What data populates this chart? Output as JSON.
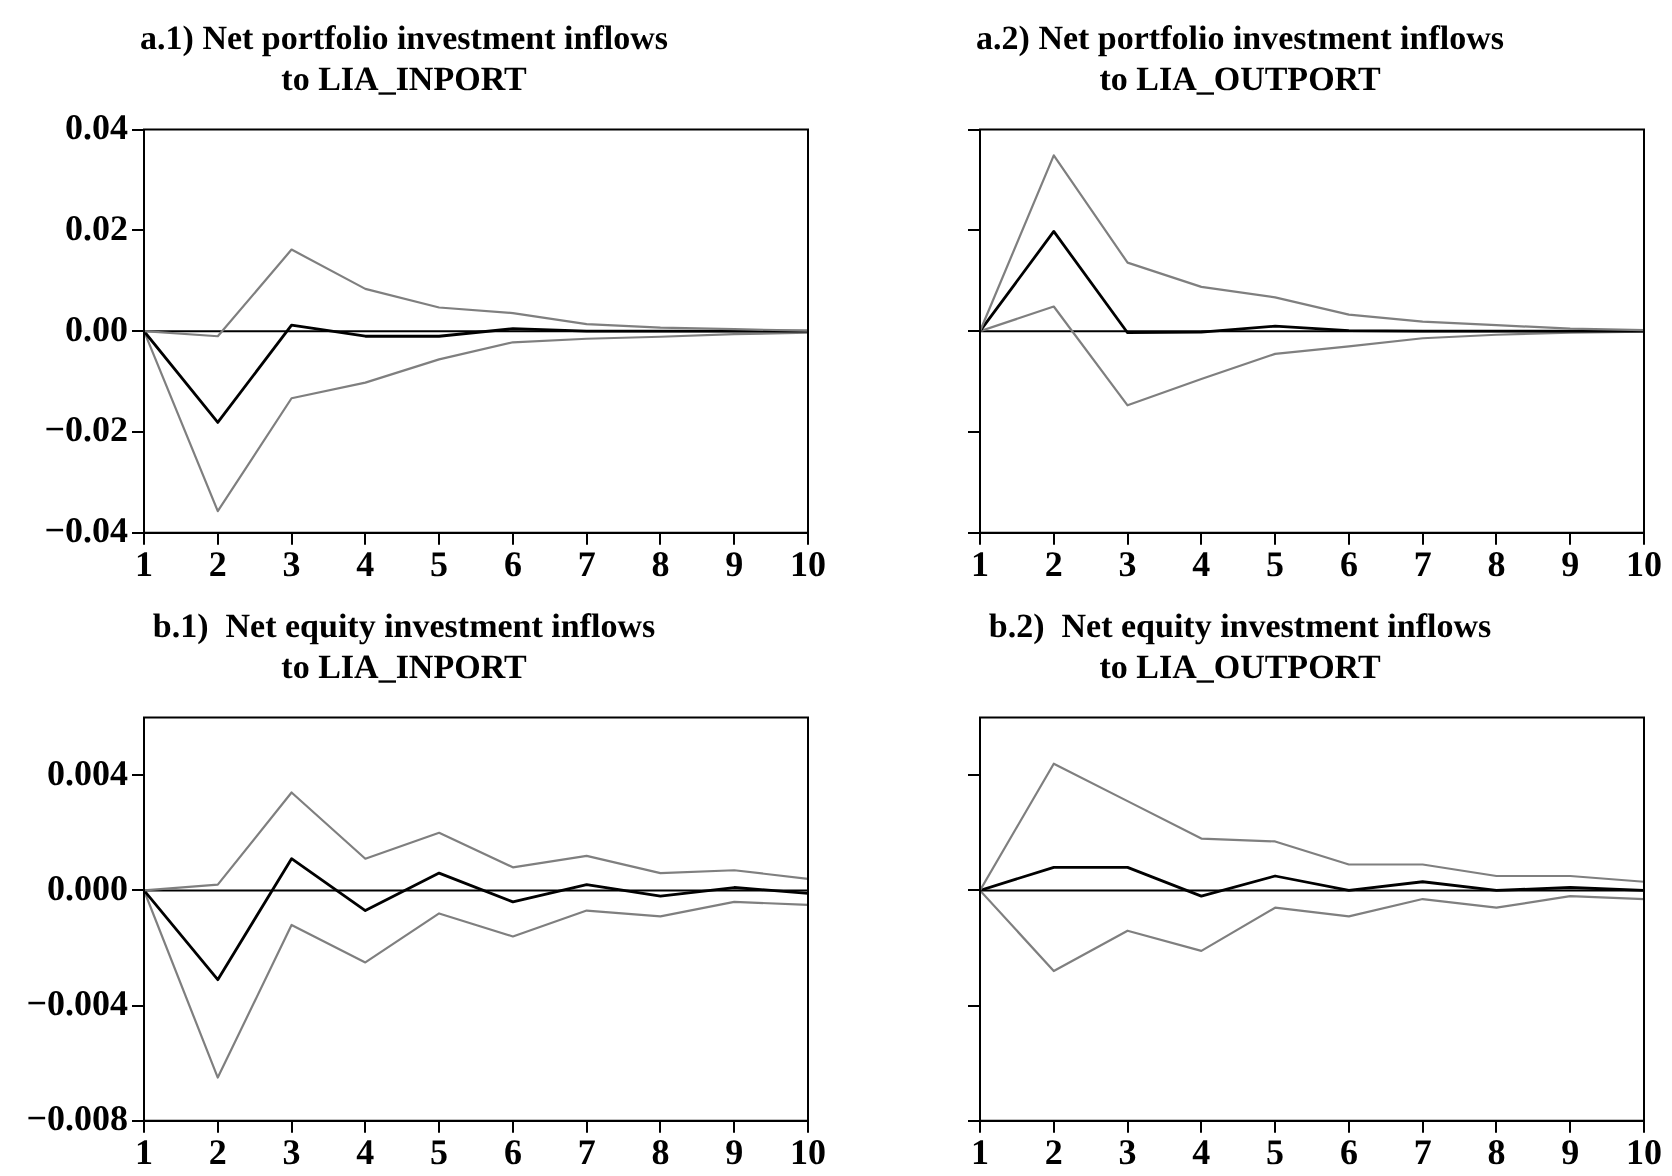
{
  "chart_data": [
    {
      "type": "line",
      "title": "a.1) Net portfolio investment inflows\nto LIA_INPORT",
      "x": [
        1,
        2,
        3,
        4,
        5,
        6,
        7,
        8,
        9,
        10
      ],
      "xlim": [
        1,
        10
      ],
      "xticks": [
        1,
        2,
        3,
        4,
        5,
        6,
        7,
        8,
        9,
        10
      ],
      "ylim": [
        -0.04,
        0.04
      ],
      "yticks": [
        {
          "value": -0.04,
          "label": "−0.04"
        },
        {
          "value": -0.02,
          "label": "−0.02"
        },
        {
          "value": 0,
          "label": "0.00"
        },
        0.02,
        0.04
      ],
      "grid": false,
      "legend": false,
      "marker": "none",
      "ref_lines": [
        {
          "axis": "y",
          "value": 0,
          "color": "#000000"
        }
      ],
      "series": [
        {
          "color": "#7f7f7f",
          "values": [
            0,
            -0.001,
            0.0162,
            0.0084,
            0.0047,
            0.0036,
            0.0014,
            0.0007,
            0.0004,
            0.0001
          ]
        },
        {
          "color": "#000000",
          "values": [
            0,
            -0.0181,
            0.0012,
            -0.001,
            -0.001,
            0.0005,
            0,
            0,
            0,
            0
          ]
        },
        {
          "color": "#7f7f7f",
          "values": [
            0,
            -0.0357,
            -0.0133,
            -0.0102,
            -0.0056,
            -0.0022,
            -0.0015,
            -0.0011,
            -0.0006,
            -0.0003
          ]
        }
      ]
    },
    {
      "type": "line",
      "title": "a.2) Net portfolio investment inflows\nto LIA_OUTPORT",
      "x": [
        1,
        2,
        3,
        4,
        5,
        6,
        7,
        8,
        9,
        10
      ],
      "xlim": [
        1,
        10
      ],
      "xticks": [
        1,
        2,
        3,
        4,
        5,
        6,
        7,
        8,
        9,
        10
      ],
      "ylim": [
        -0.04,
        0.04
      ],
      "yticks": [
        {
          "value": -0.04,
          "label": null
        },
        {
          "value": -0.02,
          "label": null
        },
        {
          "value": 0,
          "label": null
        },
        {
          "value": 0.02,
          "label": null
        },
        {
          "value": 0.04,
          "label": null
        }
      ],
      "tick_labels": "x",
      "grid": false,
      "legend": false,
      "marker": "none",
      "ref_lines": [
        {
          "axis": "y",
          "value": 0,
          "color": "#000000"
        }
      ],
      "series": [
        {
          "color": "#7f7f7f",
          "values": [
            0,
            0.0349,
            0.0136,
            0.0088,
            0.0067,
            0.0033,
            0.0019,
            0.0012,
            0.0005,
            0.0002
          ]
        },
        {
          "color": "#000000",
          "values": [
            0,
            0.0198,
            -0.0003,
            -0.0002,
            0.001,
            0.0001,
            0,
            0,
            0,
            0
          ]
        },
        {
          "color": "#7f7f7f",
          "values": [
            0,
            0.0049,
            -0.0147,
            -0.0095,
            -0.0045,
            -0.003,
            -0.0014,
            -0.0007,
            -0.0003,
            -0.0001
          ]
        }
      ]
    },
    {
      "type": "line",
      "title": "b.1)  Net equity investment inflows\nto LIA_INPORT",
      "x": [
        1,
        2,
        3,
        4,
        5,
        6,
        7,
        8,
        9,
        10
      ],
      "xlim": [
        1,
        10
      ],
      "xticks": [
        1,
        2,
        3,
        4,
        5,
        6,
        7,
        8,
        9,
        10
      ],
      "ylim": [
        -0.008,
        0.006
      ],
      "yticks": [
        {
          "value": -0.008,
          "label": "−0.008"
        },
        {
          "value": -0.004,
          "label": "−0.004"
        },
        {
          "value": 0,
          "label": "0.000"
        },
        0.004
      ],
      "grid": false,
      "legend": false,
      "marker": "none",
      "ref_lines": [
        {
          "axis": "y",
          "value": 0,
          "color": "#000000"
        }
      ],
      "series": [
        {
          "color": "#7f7f7f",
          "values": [
            0,
            0.0002,
            0.0034,
            0.0011,
            0.002,
            0.0008,
            0.0012,
            0.0006,
            0.0007,
            0.0004
          ]
        },
        {
          "color": "#000000",
          "values": [
            0,
            -0.0031,
            0.0011,
            -0.0007,
            0.0006,
            -0.0004,
            0.0002,
            -0.0002,
            0.0001,
            -0.0001
          ]
        },
        {
          "color": "#7f7f7f",
          "values": [
            0,
            -0.0065,
            -0.0012,
            -0.0025,
            -0.0008,
            -0.0016,
            -0.0007,
            -0.0009,
            -0.0004,
            -0.0005
          ]
        }
      ]
    },
    {
      "type": "line",
      "title": "b.2)  Net equity investment inflows\nto LIA_OUTPORT",
      "x": [
        1,
        2,
        3,
        4,
        5,
        6,
        7,
        8,
        9,
        10
      ],
      "xlim": [
        1,
        10
      ],
      "xticks": [
        1,
        2,
        3,
        4,
        5,
        6,
        7,
        8,
        9,
        10
      ],
      "ylim": [
        -0.008,
        0.006
      ],
      "yticks": [
        {
          "value": -0.008,
          "label": null
        },
        {
          "value": -0.004,
          "label": null
        },
        {
          "value": 0,
          "label": null
        },
        {
          "value": 0.004,
          "label": null
        }
      ],
      "tick_labels": "x",
      "grid": false,
      "legend": false,
      "marker": "none",
      "ref_lines": [
        {
          "axis": "y",
          "value": 0,
          "color": "#000000"
        }
      ],
      "series": [
        {
          "color": "#7f7f7f",
          "values": [
            0,
            0.0044,
            0.0031,
            0.0018,
            0.0017,
            0.0009,
            0.0009,
            0.0005,
            0.0005,
            0.0003
          ]
        },
        {
          "color": "#000000",
          "values": [
            0,
            0.0008,
            0.0008,
            -0.0002,
            0.0005,
            0,
            0.0003,
            0,
            0.0001,
            0
          ]
        },
        {
          "color": "#7f7f7f",
          "values": [
            0,
            -0.0028,
            -0.0014,
            -0.0021,
            -0.0006,
            -0.0009,
            -0.0003,
            -0.0006,
            -0.0002,
            -0.0003
          ]
        }
      ]
    }
  ]
}
